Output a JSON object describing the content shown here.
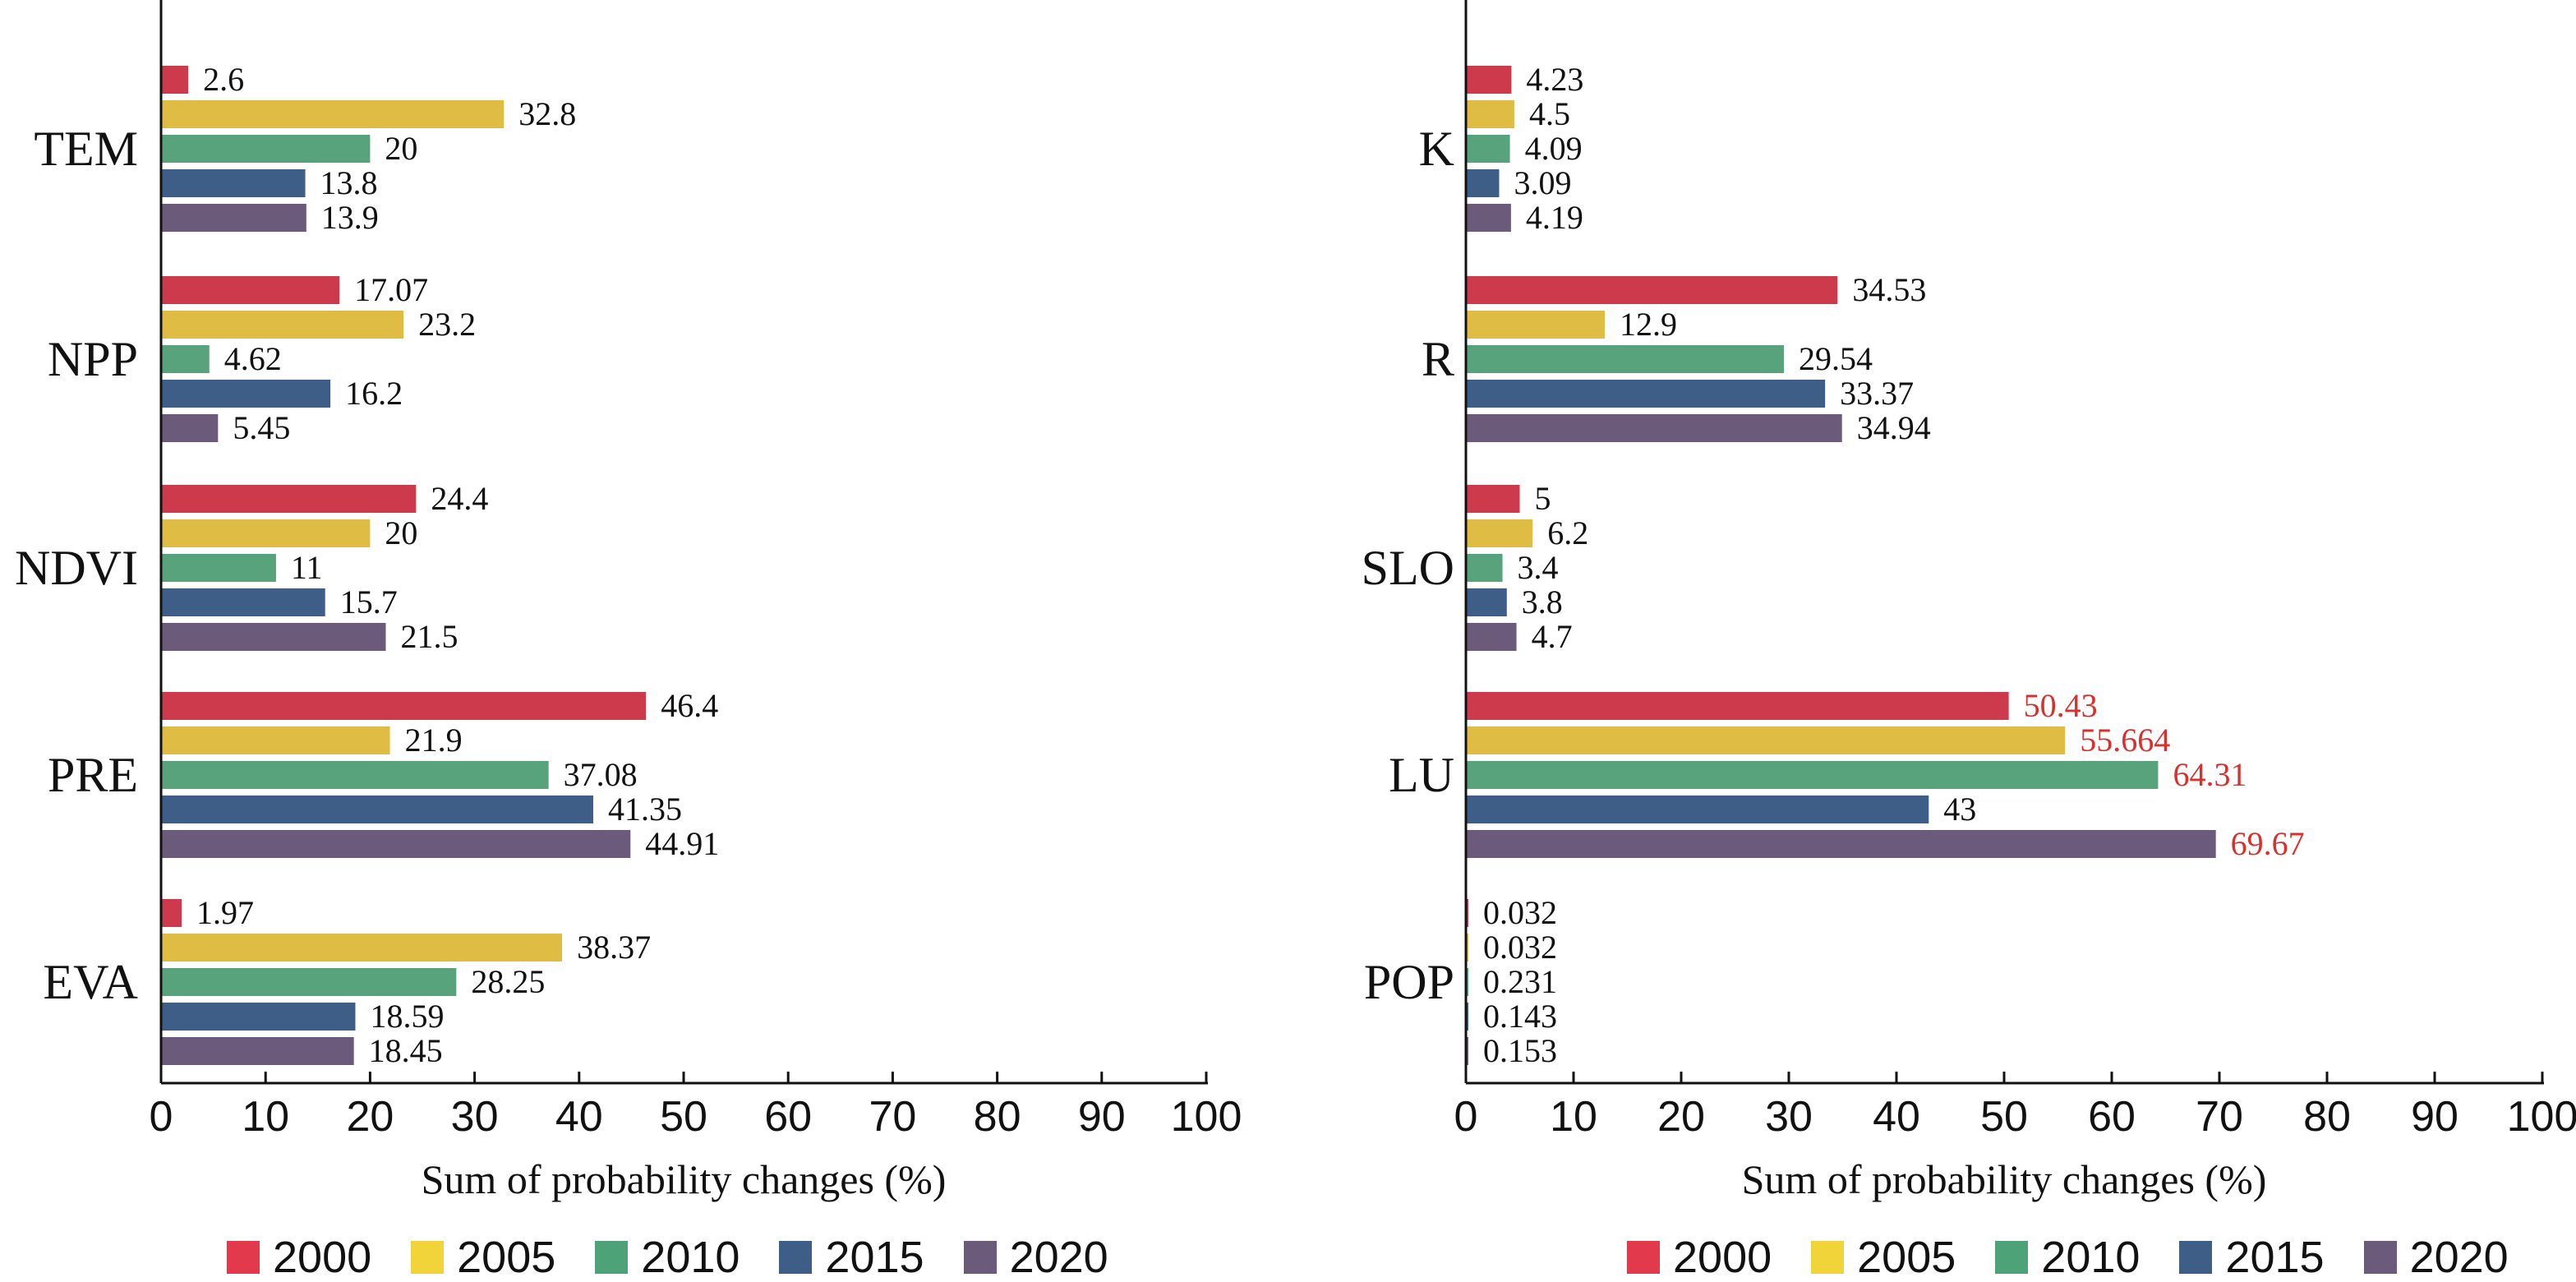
{
  "colors": {
    "2000": "#cc3a4c",
    "2005": "#dfbd45",
    "2010": "#58a27c",
    "2015": "#3e5e88",
    "2020": "#6b5a7a",
    "highlight_label": "#d8302f"
  },
  "legend": {
    "entries": [
      {
        "label": "2000",
        "swatch_color": "#e23a4c"
      },
      {
        "label": "2005",
        "swatch_color": "#f0d43a"
      },
      {
        "label": "2010",
        "swatch_color": "#4ea277"
      },
      {
        "label": "2015",
        "swatch_color": "#3e5e88"
      },
      {
        "label": "2020",
        "swatch_color": "#6b5a7a"
      }
    ]
  },
  "chart_data": [
    {
      "type": "bar",
      "orientation": "horizontal",
      "categories": [
        "TEM",
        "NPP",
        "NDVI",
        "PRE",
        "EVA"
      ],
      "xlabel": "Sum of probability changes (%)",
      "xlim": [
        0,
        100
      ],
      "xticks": [
        "0",
        "10",
        "20",
        "30",
        "40",
        "50",
        "60",
        "70",
        "80",
        "90",
        "100"
      ],
      "grid": false,
      "legend_position": "bottom",
      "series": [
        {
          "name": "2000",
          "values": [
            2.6,
            17.07,
            24.4,
            46.4,
            1.97
          ],
          "labels": [
            "2.6",
            "17.07",
            "24.4",
            "46.4",
            "1.97"
          ]
        },
        {
          "name": "2005",
          "values": [
            32.8,
            23.2,
            20,
            21.9,
            38.37
          ],
          "labels": [
            "32.8",
            "23.2",
            "20",
            "21.9",
            "38.37"
          ]
        },
        {
          "name": "2010",
          "values": [
            20,
            4.62,
            11,
            37.08,
            28.25
          ],
          "labels": [
            "20",
            "4.62",
            "11",
            "37.08",
            "28.25"
          ]
        },
        {
          "name": "2015",
          "values": [
            13.8,
            16.2,
            15.7,
            41.35,
            18.59
          ],
          "labels": [
            "13.8",
            "16.2",
            "15.7",
            "41.35",
            "18.59"
          ]
        },
        {
          "name": "2020",
          "values": [
            13.9,
            5.45,
            21.5,
            44.91,
            18.45
          ],
          "labels": [
            "13.9",
            "5.45",
            "21.5",
            "44.91",
            "18.45"
          ]
        }
      ],
      "highlighted_labels": []
    },
    {
      "type": "bar",
      "orientation": "horizontal",
      "categories": [
        "K",
        "R",
        "SLO",
        "LU",
        "POP"
      ],
      "xlabel": "Sum of probability changes (%)",
      "xlim": [
        0,
        100
      ],
      "xticks": [
        "0",
        "10",
        "20",
        "30",
        "40",
        "50",
        "60",
        "70",
        "80",
        "90",
        "100"
      ],
      "grid": false,
      "legend_position": "bottom",
      "series": [
        {
          "name": "2000",
          "values": [
            4.23,
            34.53,
            5,
            50.43,
            0.032
          ],
          "labels": [
            "4.23",
            "34.53",
            "5",
            "50.43",
            "0.032"
          ]
        },
        {
          "name": "2005",
          "values": [
            4.5,
            12.9,
            6.2,
            55.664,
            0.032
          ],
          "labels": [
            "4.5",
            "12.9",
            "6.2",
            "55.664",
            "0.032"
          ]
        },
        {
          "name": "2010",
          "values": [
            4.09,
            29.54,
            3.4,
            64.31,
            0.231
          ],
          "labels": [
            "4.09",
            "29.54",
            "3.4",
            "64.31",
            "0.231"
          ]
        },
        {
          "name": "2015",
          "values": [
            3.09,
            33.37,
            3.8,
            43,
            0.143
          ],
          "labels": [
            "3.09",
            "33.37",
            "3.8",
            "43",
            "0.143"
          ]
        },
        {
          "name": "2020",
          "values": [
            4.19,
            34.94,
            4.7,
            69.67,
            0.153
          ],
          "labels": [
            "4.19",
            "34.94",
            "4.7",
            "69.67",
            "0.153"
          ]
        }
      ],
      "highlighted_labels": [
        [
          3,
          0
        ],
        [
          3,
          1
        ],
        [
          3,
          2
        ],
        [
          3,
          4
        ]
      ]
    }
  ]
}
